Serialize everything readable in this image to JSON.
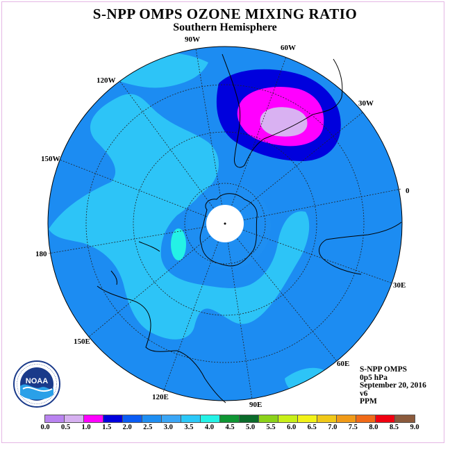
{
  "title": "S-NPP OMPS OZONE MIXING RATIO",
  "subtitle": "Southern Hemisphere",
  "longitude_labels": {
    "w90": "90W",
    "w60": "60W",
    "w30": "30W",
    "w120": "120W",
    "w150": "150W",
    "lon0": "0",
    "lon180": "180",
    "e30": "30E",
    "e60": "60E",
    "e90": "90E",
    "e120": "120E",
    "e150": "150E"
  },
  "info": {
    "instrument": "S-NPP OMPS",
    "level": "0p5 hPa",
    "date": "September 20, 2016",
    "version": "v6",
    "units": "PPM"
  },
  "logo_text": "NOAA",
  "colorbar": {
    "colors": [
      "#b983f0",
      "#d6b0f0",
      "#ff00ff",
      "#0000dd",
      "#0a5cf4",
      "#1e8ef2",
      "#3aa6f6",
      "#2bc8f8",
      "#24f2e6",
      "#0f9633",
      "#0a6b2a",
      "#8bd219",
      "#c8f018",
      "#f2f218",
      "#f0c818",
      "#f09a18",
      "#f06a18",
      "#f00010",
      "#8b5a3c"
    ],
    "ticks": [
      "0.0",
      "0.5",
      "1.0",
      "1.5",
      "2.0",
      "2.5",
      "3.0",
      "3.5",
      "4.0",
      "4.5",
      "5.0",
      "5.5",
      "6.0",
      "6.5",
      "7.0",
      "7.5",
      "8.0",
      "8.5",
      "9.0"
    ]
  },
  "map_colors": {
    "background": "#1c8cf2",
    "light": "#2dc4f7",
    "mid": "#1e8ef2",
    "dark": "#0000dd",
    "magenta": "#ff00ff",
    "lilac": "#d9b1f2",
    "cyan": "#24f2e6"
  }
}
